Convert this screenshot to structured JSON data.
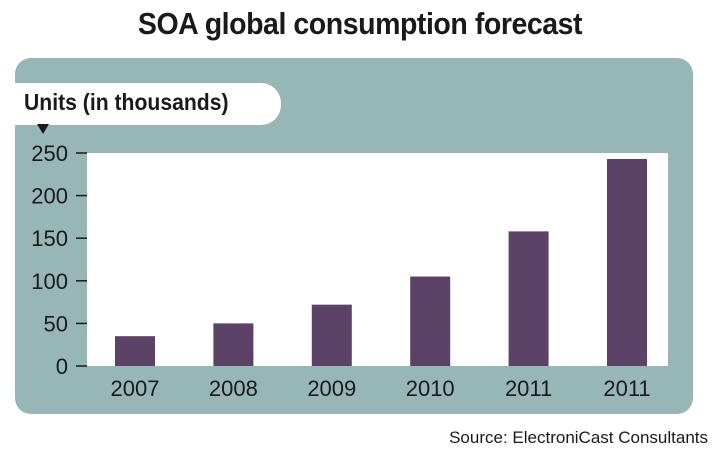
{
  "chart_data": {
    "type": "bar",
    "title": "SOA global consumption forecast",
    "ylabel": "Units (in thousands)",
    "xlabel": "",
    "categories": [
      "2007",
      "2008",
      "2009",
      "2010",
      "2011",
      "2011"
    ],
    "values": [
      35,
      50,
      72,
      105,
      158,
      243
    ],
    "ylim": [
      0,
      250
    ],
    "yticks": [
      0,
      50,
      100,
      150,
      200,
      250
    ],
    "grid": false,
    "source": "Source: ElectroniCast Consultants",
    "colors": {
      "bar": "#5c4266",
      "panel": "#97b6b6",
      "plot": "#ffffff",
      "text": "#1a1a1a"
    }
  }
}
